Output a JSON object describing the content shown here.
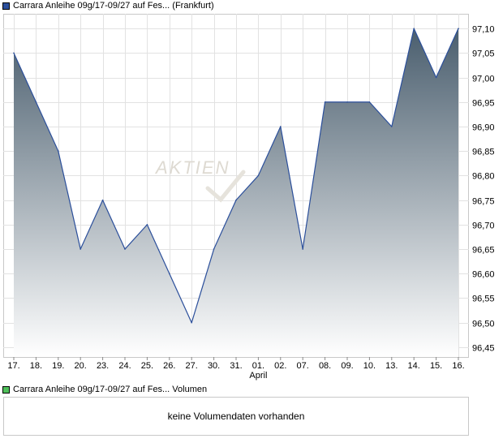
{
  "price_legend": {
    "label": "Carrara Anleihe 09g/17-09/27 auf Fes... (Frankfurt)",
    "color": "#2b4f9b"
  },
  "volume_legend": {
    "label": "Carrara Anleihe 09g/17-09/27 auf Fes... Volumen",
    "color": "#4fc05a"
  },
  "volume_panel": {
    "message": "keine Volumendaten vorhanden"
  },
  "watermark": "AKTIEN",
  "chart_data": {
    "type": "area",
    "categories": [
      "17.",
      "18.",
      "19.",
      "20.",
      "23.",
      "24.",
      "25.",
      "26.",
      "27.",
      "30.",
      "31.",
      "01.",
      "02.",
      "07.",
      "08.",
      "09.",
      "10.",
      "13.",
      "14.",
      "15.",
      "16."
    ],
    "month_label": "April",
    "month_label_under": "01.",
    "series": [
      {
        "values": [
          97.05,
          96.95,
          96.85,
          96.65,
          96.75,
          96.65,
          96.7,
          96.6,
          96.5,
          96.65,
          96.75,
          96.8,
          96.9,
          96.65,
          96.95,
          96.95,
          96.95,
          96.9,
          97.1,
          97.0,
          97.1
        ]
      }
    ],
    "y_ticks": [
      "97,10",
      "97,05",
      "97,00",
      "96,95",
      "96,90",
      "96,85",
      "96,80",
      "96,75",
      "96,70",
      "96,65",
      "96,60",
      "96,55",
      "96,50",
      "96,45"
    ],
    "y_tick_values": [
      97.1,
      97.05,
      97.0,
      96.95,
      96.9,
      96.85,
      96.8,
      96.75,
      96.7,
      96.65,
      96.6,
      96.55,
      96.5,
      96.45
    ],
    "ylim": [
      96.43,
      97.13
    ],
    "grid": true,
    "line_color": "#2b4f9b",
    "fill_top_color": "#4a5e6e",
    "fill_bottom_color": "#ffffff"
  }
}
